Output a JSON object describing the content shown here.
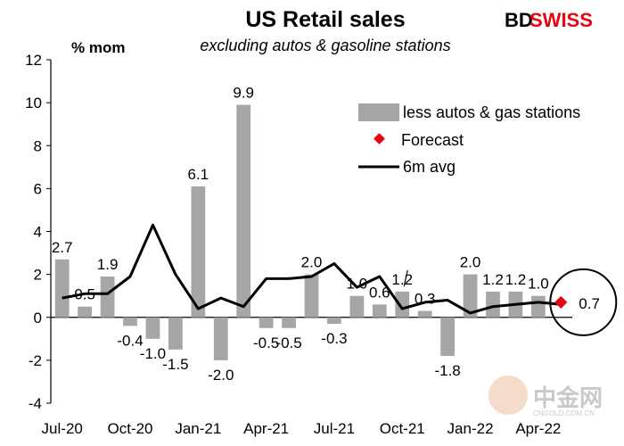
{
  "brand": {
    "left": "BD",
    "right": "SWISS",
    "color_left": "#000000",
    "color_right": "#e30613"
  },
  "watermark": {
    "text": "中金网",
    "subtext": "CNGOLD.COM.CN"
  },
  "chart_data": {
    "type": "bar",
    "title": "US Retail sales",
    "subtitle": "excluding autos & gasoline stations",
    "ylabel": "% mom",
    "ylim": [
      -4,
      12
    ],
    "yticks": [
      -4,
      -2,
      0,
      2,
      4,
      6,
      8,
      10,
      12
    ],
    "x_tick_labels": [
      "Jul-20",
      "Oct-20",
      "Jan-21",
      "Apr-21",
      "Jul-21",
      "Oct-21",
      "Jan-22",
      "Apr-22"
    ],
    "x_tick_category_index": [
      0,
      3,
      6,
      9,
      12,
      15,
      18,
      21
    ],
    "categories": [
      "Jul-20",
      "Aug-20",
      "Sep-20",
      "Oct-20",
      "Nov-20",
      "Dec-20",
      "Jan-21",
      "Feb-21",
      "Mar-21",
      "Apr-21",
      "May-21",
      "Jun-21",
      "Jul-21",
      "Aug-21",
      "Sep-21",
      "Oct-21",
      "Nov-21",
      "Dec-21",
      "Jan-22",
      "Feb-22",
      "Mar-22",
      "Apr-22",
      "May-22"
    ],
    "grid": false,
    "legend": {
      "position": "top-right",
      "entries": [
        "less autos & gas stations",
        "Forecast",
        "6m avg"
      ]
    },
    "series": [
      {
        "name": "less autos & gas stations",
        "kind": "bar",
        "color": "#a6a6a6",
        "values": [
          2.7,
          0.5,
          1.9,
          -0.4,
          -1.0,
          -1.5,
          6.1,
          -2.0,
          9.9,
          -0.5,
          -0.5,
          2.0,
          -0.3,
          1.0,
          0.6,
          1.2,
          0.3,
          -1.8,
          2.0,
          1.2,
          1.2,
          1.0,
          null
        ]
      },
      {
        "name": "Forecast",
        "kind": "marker",
        "color": "#e30613",
        "values": [
          null,
          null,
          null,
          null,
          null,
          null,
          null,
          null,
          null,
          null,
          null,
          null,
          null,
          null,
          null,
          null,
          null,
          null,
          null,
          null,
          null,
          null,
          0.7
        ]
      },
      {
        "name": "6m avg",
        "kind": "line",
        "color": "#000000",
        "values": [
          0.9,
          1.1,
          1.1,
          1.9,
          4.3,
          2.0,
          0.4,
          0.9,
          0.5,
          1.8,
          1.8,
          1.9,
          2.5,
          1.4,
          1.9,
          0.4,
          0.7,
          0.8,
          0.2,
          0.5,
          0.6,
          0.7,
          0.6
        ]
      }
    ],
    "data_labels": [
      {
        "index": 0,
        "text": "2.7"
      },
      {
        "index": 1,
        "text": "0.5"
      },
      {
        "index": 2,
        "text": "1.9"
      },
      {
        "index": 3,
        "text": "-0.4"
      },
      {
        "index": 4,
        "text": "-1.0"
      },
      {
        "index": 5,
        "text": "-1.5"
      },
      {
        "index": 6,
        "text": "6.1"
      },
      {
        "index": 7,
        "text": "-2.0"
      },
      {
        "index": 8,
        "text": "9.9"
      },
      {
        "index": 9,
        "text": "-0.5"
      },
      {
        "index": 10,
        "text": "-0.5"
      },
      {
        "index": 11,
        "text": "2.0"
      },
      {
        "index": 12,
        "text": "-0.3"
      },
      {
        "index": 13,
        "text": "1.0"
      },
      {
        "index": 14,
        "text": "0.6"
      },
      {
        "index": 15,
        "text": "1.2"
      },
      {
        "index": 16,
        "text": "0.3"
      },
      {
        "index": 17,
        "text": "-1.8"
      },
      {
        "index": 18,
        "text": "2.0"
      },
      {
        "index": 19,
        "text": "1.2"
      },
      {
        "index": 20,
        "text": "1.2"
      },
      {
        "index": 21,
        "text": "1.0"
      },
      {
        "index": 22,
        "text": "0.7"
      }
    ]
  }
}
